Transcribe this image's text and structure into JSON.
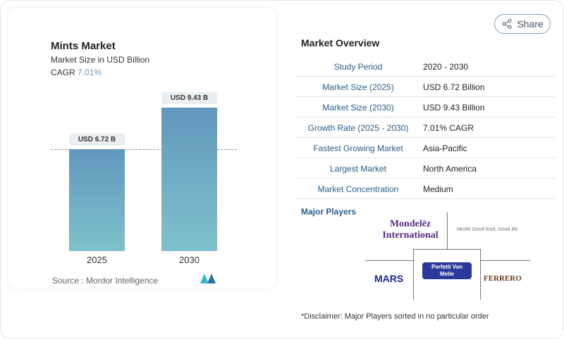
{
  "share_label": "Share",
  "chart_data": {
    "type": "bar",
    "title": "Mints Market",
    "subtitle": "Market Size in USD Billion",
    "cagr_label": "CAGR",
    "cagr_value": "7.01%",
    "categories": [
      "2025",
      "2030"
    ],
    "values": [
      6.72,
      9.43
    ],
    "data_labels": [
      "USD 6.72 B",
      "USD 9.43 B"
    ],
    "colors": [
      "#6297bd",
      "#7fc1cb"
    ]
  },
  "source": "Source :  Mordor Intelligence",
  "overview": {
    "title": "Market Overview",
    "rows": [
      {
        "k": "Study Period",
        "v": "2020 - 2030"
      },
      {
        "k": "Market Size (2025)",
        "v": "USD 6.72 Billion"
      },
      {
        "k": "Market Size (2030)",
        "v": "USD 9.43 Billion"
      },
      {
        "k": "Growth Rate (2025 - 2030)",
        "v": "7.01% CAGR"
      },
      {
        "k": "Fastest Growing Market",
        "v": "Asia-Pacific"
      },
      {
        "k": "Largest Market",
        "v": "North America"
      },
      {
        "k": "Market Concentration",
        "v": "Medium"
      }
    ]
  },
  "players": {
    "title": "Major Players",
    "list": [
      "Mondelēz International",
      "Nestlé Good food, Good life",
      "MARS",
      "Perfetti Van Melle",
      "FERRERO"
    ]
  },
  "disclaimer": "*Disclaimer: Major Players sorted in no particular order"
}
